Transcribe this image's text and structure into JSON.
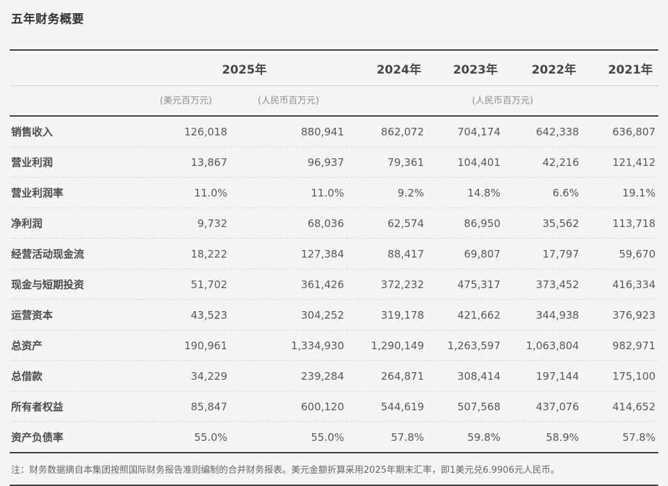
{
  "title": "五年财务概要",
  "colors": {
    "background": "#f5f5f5",
    "heavy_rule": "#3c3c3c",
    "light_rule": "#cccccc",
    "dashed_rule": "#d8d8d8",
    "title_text": "#333333",
    "header_text": "#474747",
    "unit_text": "#8c8c8c",
    "body_text": "#595959",
    "note_text": "#666666"
  },
  "table": {
    "years": [
      {
        "label": "2025年",
        "colspan": 2
      },
      {
        "label": "2024年",
        "colspan": 1
      },
      {
        "label": "2023年",
        "colspan": 1
      },
      {
        "label": "2022年",
        "colspan": 1
      },
      {
        "label": "2021年",
        "colspan": 1
      }
    ],
    "units": [
      "(美元百万元)",
      "(人民币百万元)",
      "(人民币百万元)"
    ],
    "rows": [
      {
        "label": "销售收入",
        "values": [
          "126,018",
          "880,941",
          "862,072",
          "704,174",
          "642,338",
          "636,807"
        ]
      },
      {
        "label": "营业利润",
        "values": [
          "13,867",
          "96,937",
          "79,361",
          "104,401",
          "42,216",
          "121,412"
        ]
      },
      {
        "label": "营业利润率",
        "values": [
          "11.0%",
          "11.0%",
          "9.2%",
          "14.8%",
          "6.6%",
          "19.1%"
        ]
      },
      {
        "label": "净利润",
        "values": [
          "9,732",
          "68,036",
          "62,574",
          "86,950",
          "35,562",
          "113,718"
        ]
      },
      {
        "label": "经营活动现金流",
        "values": [
          "18,222",
          "127,384",
          "88,417",
          "69,807",
          "17,797",
          "59,670"
        ]
      },
      {
        "label": "现金与短期投资",
        "values": [
          "51,702",
          "361,426",
          "372,232",
          "475,317",
          "373,452",
          "416,334"
        ]
      },
      {
        "label": "运营资本",
        "values": [
          "43,523",
          "304,252",
          "319,178",
          "421,662",
          "344,938",
          "376,923"
        ]
      },
      {
        "label": "总资产",
        "values": [
          "190,961",
          "1,334,930",
          "1,290,149",
          "1,263,597",
          "1,063,804",
          "982,971"
        ]
      },
      {
        "label": "总借款",
        "values": [
          "34,229",
          "239,284",
          "264,871",
          "308,414",
          "197,144",
          "175,100"
        ]
      },
      {
        "label": "所有者权益",
        "values": [
          "85,847",
          "600,120",
          "544,619",
          "507,568",
          "437,076",
          "414,652"
        ]
      },
      {
        "label": "资产负债率",
        "values": [
          "55.0%",
          "55.0%",
          "57.8%",
          "59.8%",
          "58.9%",
          "57.8%"
        ]
      }
    ],
    "note": "注：财务数据摘自本集团按照国际财务报告准则编制的合并财务报表。美元金额折算采用2025年期末汇率，即1美元兑6.9906元人民币。"
  }
}
